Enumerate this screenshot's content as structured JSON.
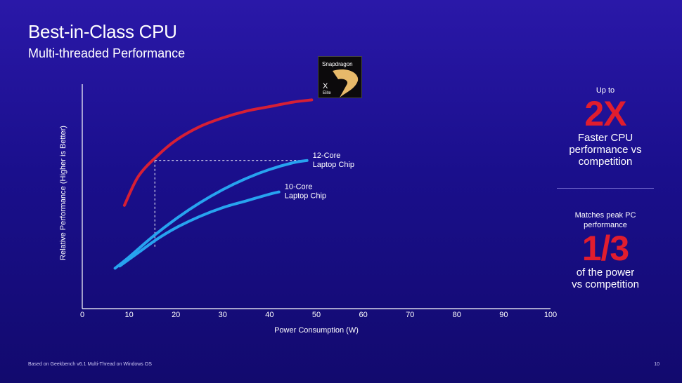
{
  "header": {
    "title": "Best-in-Class CPU",
    "subtitle": "Multi-threaded Performance"
  },
  "badge": {
    "brand": "Snapdragon",
    "model": "X",
    "tier": "Elite"
  },
  "stats": {
    "first": {
      "pre": "Up to",
      "value": "2X",
      "desc_line1": "Faster CPU",
      "desc_line2": "performance vs",
      "desc_line3": "competition"
    },
    "second": {
      "pre_line1": "Matches peak PC",
      "pre_line2": "performance",
      "value": "1/3",
      "desc_line1": "of the power",
      "desc_line2": "vs competition"
    }
  },
  "footer": {
    "note": "Based on Geekbench v6.1 Multi-Thread on Windows OS",
    "page": "10"
  },
  "colors": {
    "snapdragon": "#d61f35",
    "competitor": "#27a3f0",
    "accent_text": "#e11d2e"
  },
  "chart_data": {
    "type": "line",
    "xlabel": "Power Consumption (W)",
    "ylabel": "Relative Performance (Higher is Better)",
    "xlim": [
      0,
      100
    ],
    "ylim": [
      0,
      100
    ],
    "x_ticks": [
      "0",
      "10",
      "20",
      "30",
      "40",
      "50",
      "60",
      "70",
      "80",
      "90",
      "100"
    ],
    "grid": false,
    "series": [
      {
        "name": "",
        "color": "#d61f35",
        "points": [
          [
            9,
            46
          ],
          [
            12,
            59
          ],
          [
            16,
            68
          ],
          [
            20,
            75
          ],
          [
            25,
            81
          ],
          [
            30,
            85
          ],
          [
            35,
            88
          ],
          [
            40,
            90
          ],
          [
            45,
            92
          ],
          [
            49,
            93
          ]
        ]
      },
      {
        "name": "12-Core Laptop Chip",
        "color": "#27a3f0",
        "points": [
          [
            7,
            18
          ],
          [
            10,
            23
          ],
          [
            15,
            32
          ],
          [
            20,
            40
          ],
          [
            25,
            47
          ],
          [
            30,
            53
          ],
          [
            35,
            58
          ],
          [
            40,
            62
          ],
          [
            45,
            65
          ],
          [
            48,
            66
          ]
        ]
      },
      {
        "name": "10-Core Laptop Chip",
        "color": "#27a3f0",
        "points": [
          [
            8,
            19
          ],
          [
            12,
            25
          ],
          [
            16,
            31
          ],
          [
            20,
            36
          ],
          [
            25,
            41
          ],
          [
            30,
            45
          ],
          [
            35,
            48
          ],
          [
            40,
            51
          ],
          [
            42,
            52
          ]
        ]
      }
    ],
    "annotation": {
      "y": 66,
      "x_from": 15.5,
      "x_to": 48
    }
  }
}
